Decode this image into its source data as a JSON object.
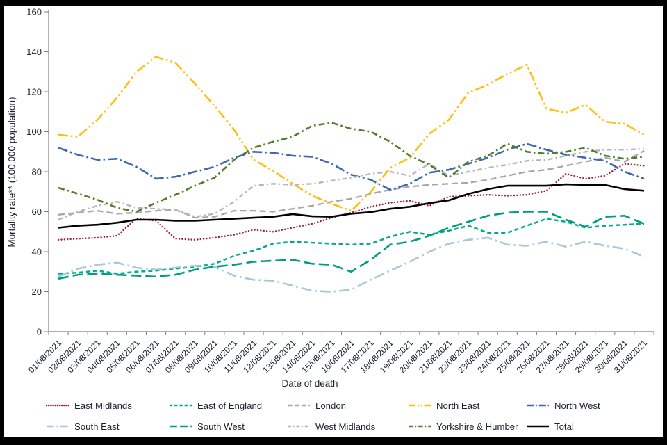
{
  "axis": {
    "color": "#7f7f7f",
    "text_color": "#1b2130"
  },
  "chart_data": {
    "type": "line",
    "title": "",
    "xlabel": "Date of death",
    "ylabel": "Mortality rate** (100,000 population)",
    "ylim": [
      0,
      160
    ],
    "ytick_step": 20,
    "grid": false,
    "legend_position": "bottom",
    "x": [
      "01/08/2021",
      "02/08/2021",
      "03/08/2021",
      "04/08/2021",
      "05/08/2021",
      "06/08/2021",
      "07/08/2021",
      "08/08/2021",
      "09/08/2021",
      "10/08/2021",
      "11/08/2021",
      "12/08/2021",
      "13/08/2021",
      "14/08/2021",
      "15/08/2021",
      "16/08/2021",
      "17/08/2021",
      "18/08/2021",
      "19/08/2021",
      "20/08/2021",
      "21/08/2021",
      "22/08/2021",
      "23/08/2021",
      "24/08/2021",
      "25/08/2021",
      "26/08/2021",
      "27/08/2021",
      "28/08/2021",
      "29/08/2021",
      "30/08/2021",
      "31/08/2021"
    ],
    "series": [
      {
        "name": "East Midlands",
        "color": "#a01b41",
        "style": "dotted",
        "values": [
          46,
          46.5,
          47,
          48,
          56.5,
          55.5,
          46.5,
          46,
          47,
          48.5,
          51,
          50,
          52,
          54,
          57,
          59.5,
          62.5,
          64.5,
          65.5,
          63,
          67.5,
          68,
          68.5,
          68,
          68.5,
          70.5,
          79,
          76.5,
          78,
          84,
          83
        ]
      },
      {
        "name": "East of England",
        "color": "#00ab91",
        "style": "dash-short",
        "values": [
          29,
          29.5,
          30.5,
          29,
          30,
          30.5,
          31.5,
          32.5,
          34,
          38,
          40.5,
          44,
          45,
          44.5,
          44,
          43.5,
          44,
          47.5,
          50,
          48.5,
          50.5,
          53,
          49.5,
          49.5,
          53,
          56.5,
          55,
          52,
          53,
          53.5,
          54
        ]
      },
      {
        "name": "London",
        "color": "#a6a6a6",
        "style": "dash-med",
        "values": [
          58.5,
          59.5,
          60.5,
          59,
          59.5,
          60.5,
          61,
          57,
          57.5,
          60.5,
          60.5,
          60,
          61.5,
          63,
          65,
          66.5,
          69,
          71,
          72.5,
          73.5,
          74,
          74.5,
          76,
          78,
          80,
          81,
          83,
          85,
          87,
          85,
          90.5
        ]
      },
      {
        "name": "North East",
        "color": "#fdc010",
        "style": "dash-dot-dot",
        "values": [
          98.5,
          97.5,
          106,
          117,
          130,
          137.5,
          134.5,
          124,
          113,
          101,
          86,
          80.5,
          74,
          68,
          64,
          60.5,
          70,
          82,
          87,
          99,
          106,
          119.5,
          123.5,
          129,
          133.5,
          111.5,
          109.5,
          113.5,
          105,
          104,
          98.5
        ]
      },
      {
        "name": "North West",
        "color": "#3c68b0",
        "style": "dash-dot",
        "values": [
          92,
          88.5,
          86,
          86.5,
          82.5,
          76.5,
          77.5,
          80,
          82.5,
          87,
          90,
          89.5,
          88,
          87.5,
          84,
          78.5,
          76,
          71,
          74,
          79.5,
          81,
          84,
          87,
          91,
          94,
          91,
          88.5,
          87,
          85.5,
          80,
          76.5
        ]
      },
      {
        "name": "South East",
        "color": "#a9c6da",
        "style": "long-dash-dot",
        "values": [
          27.5,
          31.5,
          33.5,
          34.5,
          32,
          31,
          32,
          33,
          32.5,
          28,
          26,
          25.5,
          23,
          20.5,
          20,
          21,
          26,
          30.5,
          35,
          40,
          44,
          46,
          47,
          43.5,
          43,
          45,
          42.5,
          45,
          43,
          41.5,
          37.5
        ]
      },
      {
        "name": "South West",
        "color": "#009e80",
        "style": "long-dash",
        "values": [
          26.5,
          28.5,
          29,
          28.5,
          28,
          27.5,
          28.5,
          31,
          32.5,
          33.5,
          35,
          35.5,
          36,
          34,
          33.5,
          30,
          36,
          43.5,
          45,
          48,
          52,
          55,
          58,
          59.5,
          60,
          60,
          56,
          52.5,
          57.5,
          58,
          54
        ]
      },
      {
        "name": "West Midlands",
        "color": "#b5b5b5",
        "style": "dash-dot-sm",
        "values": [
          56,
          60,
          63,
          65,
          62,
          61.5,
          61,
          57.5,
          59,
          65,
          73,
          74,
          73.5,
          74,
          75.5,
          77,
          79,
          80,
          78,
          84,
          78,
          80,
          82,
          83.5,
          85.5,
          86,
          88,
          90,
          91,
          91,
          91.5
        ]
      },
      {
        "name": "Yorkshire & Humber",
        "color": "#527c29",
        "style": "dash-dot-md",
        "values": [
          72,
          69,
          66,
          62,
          60,
          64.5,
          68.5,
          73,
          77,
          86,
          92,
          95,
          97.5,
          103,
          104.5,
          101.5,
          100,
          95,
          88,
          83.5,
          77,
          85,
          88,
          94,
          90,
          89,
          90,
          92,
          88,
          86.5,
          87.5
        ]
      },
      {
        "name": "Total",
        "color": "#000000",
        "style": "solid",
        "values": [
          52,
          53,
          53.5,
          54.5,
          56,
          56,
          55.5,
          55.5,
          56,
          56.5,
          57,
          57.5,
          58.8,
          57.7,
          57.5,
          59,
          59.8,
          61.5,
          62.5,
          64.3,
          65.7,
          68.9,
          71.3,
          73,
          73,
          73,
          73.7,
          73.4,
          73.4,
          71.3,
          70.5
        ]
      }
    ]
  }
}
